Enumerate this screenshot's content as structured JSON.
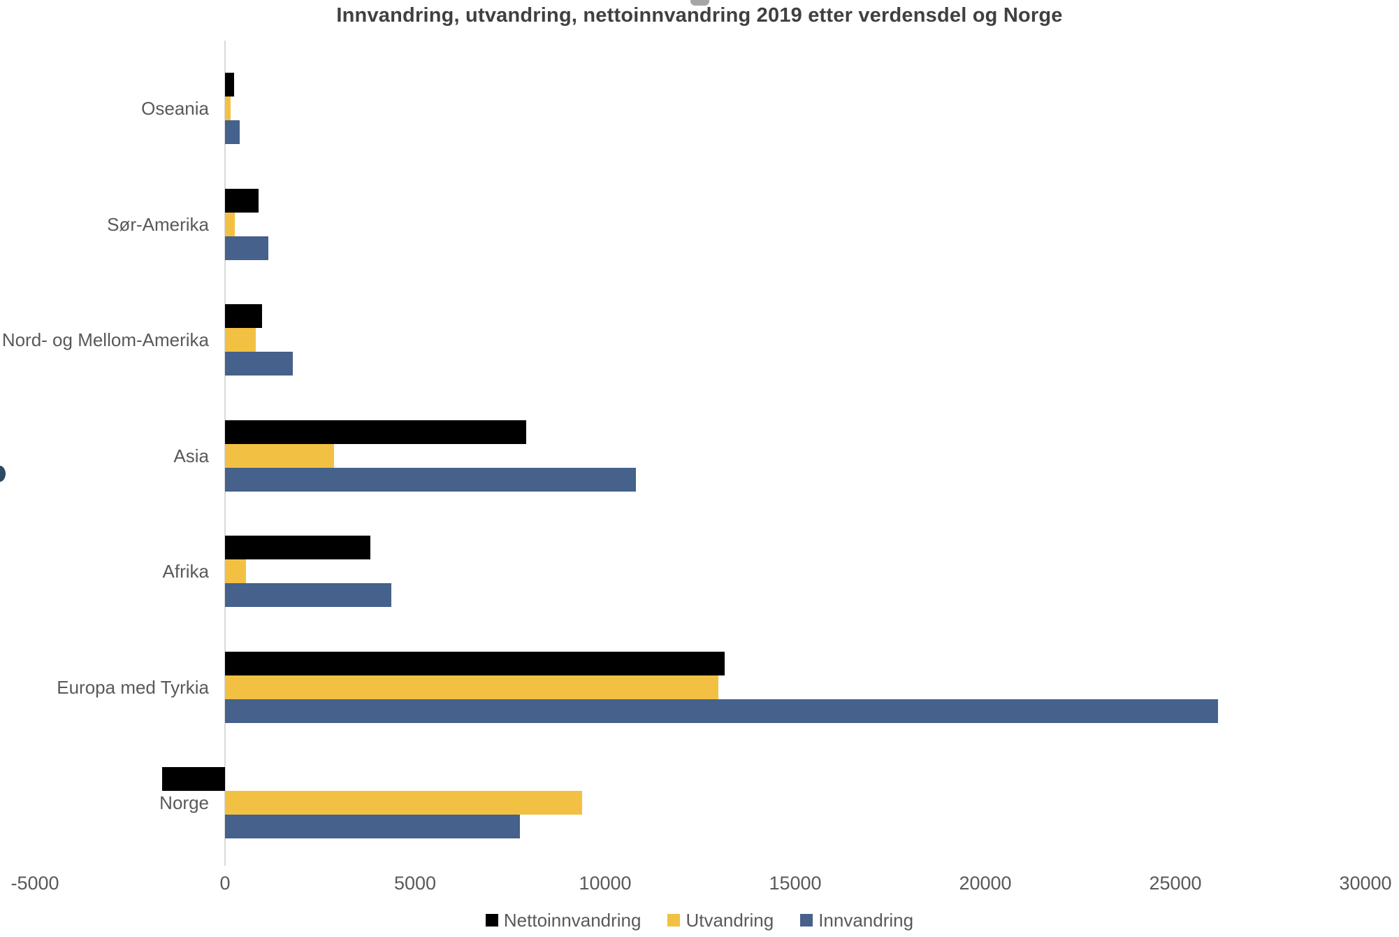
{
  "title": "Innvandring, utvandring, nettoinnvandring 2019 etter verdensdel og Norge",
  "colors": {
    "netto": "#000000",
    "utvandring": "#F2C144",
    "innvandring": "#45618C",
    "axis_line": "#D9D9D9",
    "title_text": "#404040",
    "label_text": "#595959"
  },
  "chart_data": {
    "type": "bar",
    "orientation": "horizontal",
    "title": "Innvandring, utvandring, nettoinnvandring 2019 etter verdensdel og Norge",
    "categories": [
      "Oseania",
      "Sør-Amerika",
      "Nord- og Mellom-Amerika",
      "Asia",
      "Afrika",
      "Europa med Tyrkia",
      "Norge"
    ],
    "series": [
      {
        "name": "Nettoinnvandring",
        "color": "#000000",
        "values": [
          230,
          880,
          980,
          7930,
          3820,
          13150,
          -1650
        ]
      },
      {
        "name": "Utvandring",
        "color": "#F2C144",
        "values": [
          150,
          260,
          810,
          2870,
          550,
          12980,
          9400
        ]
      },
      {
        "name": "Innvandring",
        "color": "#45618C",
        "values": [
          380,
          1140,
          1790,
          10800,
          4370,
          26130,
          7750
        ]
      }
    ],
    "x_ticks": [
      -5000,
      0,
      5000,
      10000,
      15000,
      20000,
      25000,
      30000
    ],
    "xlim": [
      -5000,
      30000
    ],
    "xlabel": "",
    "ylabel": "",
    "grid": false,
    "legend_position": "bottom"
  }
}
